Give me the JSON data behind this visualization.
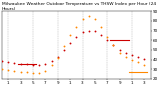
{
  "title": "Milwaukee Weather Outdoor Temperature vs THSW Index per Hour (24 Hours)",
  "title_fontsize": 3.2,
  "bg_color": "#ffffff",
  "plot_bg": "#ffffff",
  "grid_color": "#aaaaaa",
  "xlim": [
    0,
    24
  ],
  "ylim": [
    20,
    90
  ],
  "yticks": [
    20,
    30,
    40,
    50,
    60,
    70,
    80,
    90
  ],
  "ytick_labels": [
    "20",
    "30",
    "40",
    "50",
    "60",
    "70",
    "80",
    "90"
  ],
  "xtick_positions": [
    1,
    3,
    5,
    7,
    9,
    11,
    13,
    15,
    17,
    19,
    21,
    23
  ],
  "xtick_labels": [
    "1",
    "3",
    "5",
    "7",
    "9",
    "1",
    "3",
    "5",
    "7",
    "9",
    "1",
    "3"
  ],
  "vgrid_positions": [
    1,
    5,
    9,
    13,
    17,
    21
  ],
  "temp_hours": [
    0,
    1,
    2,
    3,
    4,
    5,
    6,
    7,
    8,
    9,
    10,
    11,
    12,
    13,
    14,
    15,
    16,
    17,
    18,
    19,
    20,
    21,
    22,
    23
  ],
  "temp_values": [
    38,
    37,
    36,
    35,
    35,
    34,
    34,
    35,
    38,
    43,
    50,
    57,
    63,
    68,
    70,
    69,
    65,
    60,
    55,
    50,
    47,
    45,
    43,
    41
  ],
  "thsw_hours": [
    0,
    1,
    2,
    3,
    4,
    5,
    6,
    7,
    8,
    9,
    10,
    11,
    12,
    13,
    14,
    15,
    16,
    17,
    18,
    19,
    20,
    21,
    22,
    23
  ],
  "thsw_values": [
    30,
    29,
    28,
    27,
    27,
    26,
    26,
    28,
    34,
    42,
    54,
    65,
    74,
    82,
    85,
    82,
    74,
    63,
    55,
    47,
    43,
    40,
    37,
    34
  ],
  "temp_color": "#cc0000",
  "thsw_color": "#ff8800",
  "tick_fontsize": 3.0,
  "marker_size": 1.8,
  "temp_hline_x": [
    2.5,
    5.5
  ],
  "temp_hline_y": [
    35.5,
    35.5
  ],
  "temp_hline2_x": [
    17.5,
    20.5
  ],
  "temp_hline2_y": [
    60.0,
    60.0
  ],
  "thsw_hline_x": [
    20.5,
    23.5
  ],
  "thsw_hline_y": [
    27.0,
    27.0
  ]
}
